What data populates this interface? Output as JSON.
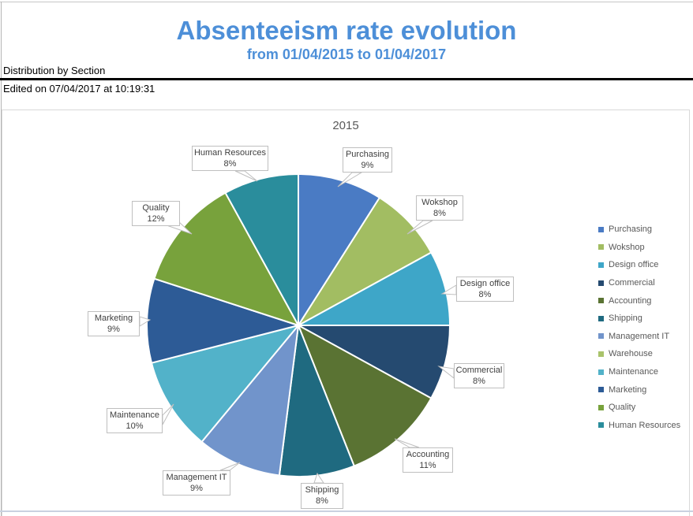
{
  "page": {
    "title": "Absenteeism rate evolution",
    "subtitle": "from 01/04/2015 to 01/04/2017",
    "section_label": "Distribution by Section",
    "edited_label": "Edited on 07/04/2017 at 10:19:31",
    "title_color": "#4d8fd8"
  },
  "chart": {
    "title": "2015"
  },
  "chart_data": {
    "type": "pie",
    "title": "2015",
    "unit": "%",
    "start_angle": "top",
    "direction": "clockwise",
    "legend_position": "right",
    "categories": [
      "Purchasing",
      "Wokshop",
      "Design office",
      "Commercial",
      "Accounting",
      "Shipping",
      "Management IT",
      "Warehouse",
      "Maintenance",
      "Marketing",
      "Quality",
      "Human Resources"
    ],
    "values": [
      9,
      8,
      8,
      8,
      11,
      8,
      9,
      0,
      10,
      9,
      12,
      8
    ],
    "data_labels": [
      "9%",
      "8%",
      "8%",
      "8%",
      "11%",
      "8%",
      "9%",
      null,
      "10%",
      "9%",
      "12%",
      "8%"
    ],
    "colors": [
      "#4a7bc4",
      "#a2bd62",
      "#3ea6c8",
      "#254a70",
      "#5a7333",
      "#1f6a80",
      "#7194cb",
      "#a9c36b",
      "#52b2c9",
      "#2d5b96",
      "#78a23c",
      "#2a8d9c"
    ]
  }
}
